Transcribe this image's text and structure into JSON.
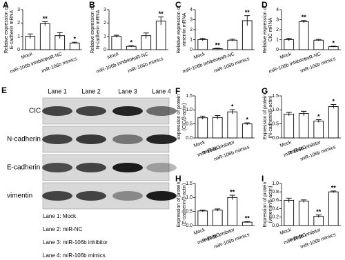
{
  "chart_data": [
    {
      "type": "bar",
      "label": "A",
      "ylabel": [
        "Relative expression of",
        "E-cadherin mRNA"
      ],
      "categories": [
        "Mock",
        "miR-106b inhibitor",
        "miR-NC",
        "miR-106b mimics"
      ],
      "values": [
        1.0,
        1.95,
        1.05,
        0.5
      ],
      "errors": [
        0.18,
        0.15,
        0.22,
        0.06
      ],
      "significance": [
        null,
        "**",
        null,
        "*"
      ],
      "ylim": [
        0,
        3
      ],
      "yticks": [
        0,
        1,
        2,
        3
      ],
      "color": "#ffffff"
    },
    {
      "type": "bar",
      "label": "B",
      "ylabel": [
        "Relative expression of",
        "N-cadherin mRNA"
      ],
      "categories": [
        "Mock",
        "miR-106b inhibitor",
        "miR-NC",
        "miR-106b mimics"
      ],
      "values": [
        1.0,
        0.25,
        1.05,
        2.15
      ],
      "errors": [
        0.08,
        0.05,
        0.2,
        0.3
      ],
      "significance": [
        null,
        "*",
        null,
        "**"
      ],
      "ylim": [
        0,
        3
      ],
      "yticks": [
        0,
        1,
        2,
        3
      ],
      "color": "#ffffff"
    },
    {
      "type": "bar",
      "label": "C",
      "ylabel": [
        "Relative expression of",
        "vimentin mRNA"
      ],
      "categories": [
        "Mock",
        "miR-106b inhibitor",
        "miR-NC",
        "miR-106b mimics"
      ],
      "values": [
        1.0,
        0.1,
        0.95,
        2.9
      ],
      "errors": [
        0.12,
        0.04,
        0.1,
        0.5
      ],
      "significance": [
        null,
        "**",
        null,
        "**"
      ],
      "ylim": [
        0,
        4
      ],
      "yticks": [
        0,
        1,
        2,
        3,
        4
      ],
      "color": "#ffffff"
    },
    {
      "type": "bar",
      "label": "D",
      "ylabel": [
        "Relative expression of",
        "CIC mRNA"
      ],
      "categories": [
        "Mock",
        "miR-106b inhibitor",
        "miR-NC",
        "miR-106b mimics"
      ],
      "values": [
        1.0,
        2.8,
        0.95,
        0.3
      ],
      "errors": [
        0.12,
        0.12,
        0.08,
        0.05
      ],
      "significance": [
        null,
        "**",
        null,
        "*"
      ],
      "ylim": [
        0,
        4
      ],
      "yticks": [
        0,
        1,
        2,
        3,
        4
      ],
      "color": "#ffffff"
    },
    {
      "type": "bar",
      "label": "F",
      "ylabel": [
        "Expression of protein",
        "(CIC/β-actin)"
      ],
      "categories": [
        "Mock",
        "miR-NC",
        "miR-106b inhibitor",
        "miR-106b mimics"
      ],
      "values": [
        0.72,
        0.73,
        0.93,
        0.5
      ],
      "errors": [
        0.06,
        0.07,
        0.08,
        0.04
      ],
      "significance": [
        null,
        null,
        "*",
        "*"
      ],
      "ylim": [
        0,
        1.5
      ],
      "yticks": [
        {
          "value": 0,
          "label": "0.0"
        },
        0.5,
        {
          "value": 1,
          "label": "1.0"
        },
        1.5
      ],
      "color": "#ffffff"
    },
    {
      "type": "bar",
      "label": "G",
      "ylabel": [
        "Expression of protein",
        "(N-cadherin/β-actin)"
      ],
      "categories": [
        "Mock",
        "miR-NC",
        "miR-106b inhibitor",
        "miR-106b mimics"
      ],
      "values": [
        0.85,
        0.87,
        0.6,
        1.12
      ],
      "errors": [
        0.06,
        0.08,
        0.05,
        0.07
      ],
      "significance": [
        null,
        null,
        "*",
        "*"
      ],
      "ylim": [
        0,
        1.5
      ],
      "yticks": [
        {
          "value": 0,
          "label": "0.0"
        },
        0.5,
        {
          "value": 1,
          "label": "1.0"
        },
        1.5
      ],
      "color": "#ffffff"
    },
    {
      "type": "bar",
      "label": "H",
      "ylabel": [
        "Expression of protein",
        "(E-cadherin/β-actin)"
      ],
      "categories": [
        "Mock",
        "miR-NC",
        "miR-106b inhibitor",
        "miR-106b mimics"
      ],
      "values": [
        0.52,
        0.55,
        1.0,
        0.12
      ],
      "errors": [
        0.03,
        0.04,
        0.08,
        0.02
      ],
      "significance": [
        null,
        null,
        "**",
        "**"
      ],
      "ylim": [
        0,
        1.5
      ],
      "yticks": [
        {
          "value": 0,
          "label": "0.0"
        },
        0.5,
        {
          "value": 1,
          "label": "1.0"
        },
        1.5
      ],
      "color": "#ffffff"
    },
    {
      "type": "bar",
      "label": "I",
      "ylabel": [
        "Expression of protein",
        "(vimentin/β-actin)"
      ],
      "categories": [
        "Mock",
        "miR-NC",
        "miR-106b inhibitor",
        "miR-106b mimics"
      ],
      "values": [
        0.6,
        0.58,
        0.22,
        0.8
      ],
      "errors": [
        0.05,
        0.03,
        0.03,
        0.02
      ],
      "significance": [
        null,
        null,
        "**",
        "**"
      ],
      "ylim": [
        0,
        1
      ],
      "yticks": [
        {
          "value": 0,
          "label": "0.0"
        },
        0.2,
        0.4,
        0.6,
        0.8,
        {
          "value": 1,
          "label": "1.0"
        }
      ],
      "color": "#ffffff"
    }
  ],
  "blot": {
    "label": "E",
    "lanes": [
      "Lane 1",
      "Lane 2",
      "Lane 3",
      "Lane 4"
    ],
    "rows": [
      "CIC",
      "N-cadherin",
      "E-cadherin",
      "vimentin"
    ],
    "legend": [
      "Lane 1: Mock",
      "Lane 2: miR-NC",
      "Lane 3: miR-106b inhibitor",
      "Lane 4: miR-106b mimics"
    ]
  }
}
